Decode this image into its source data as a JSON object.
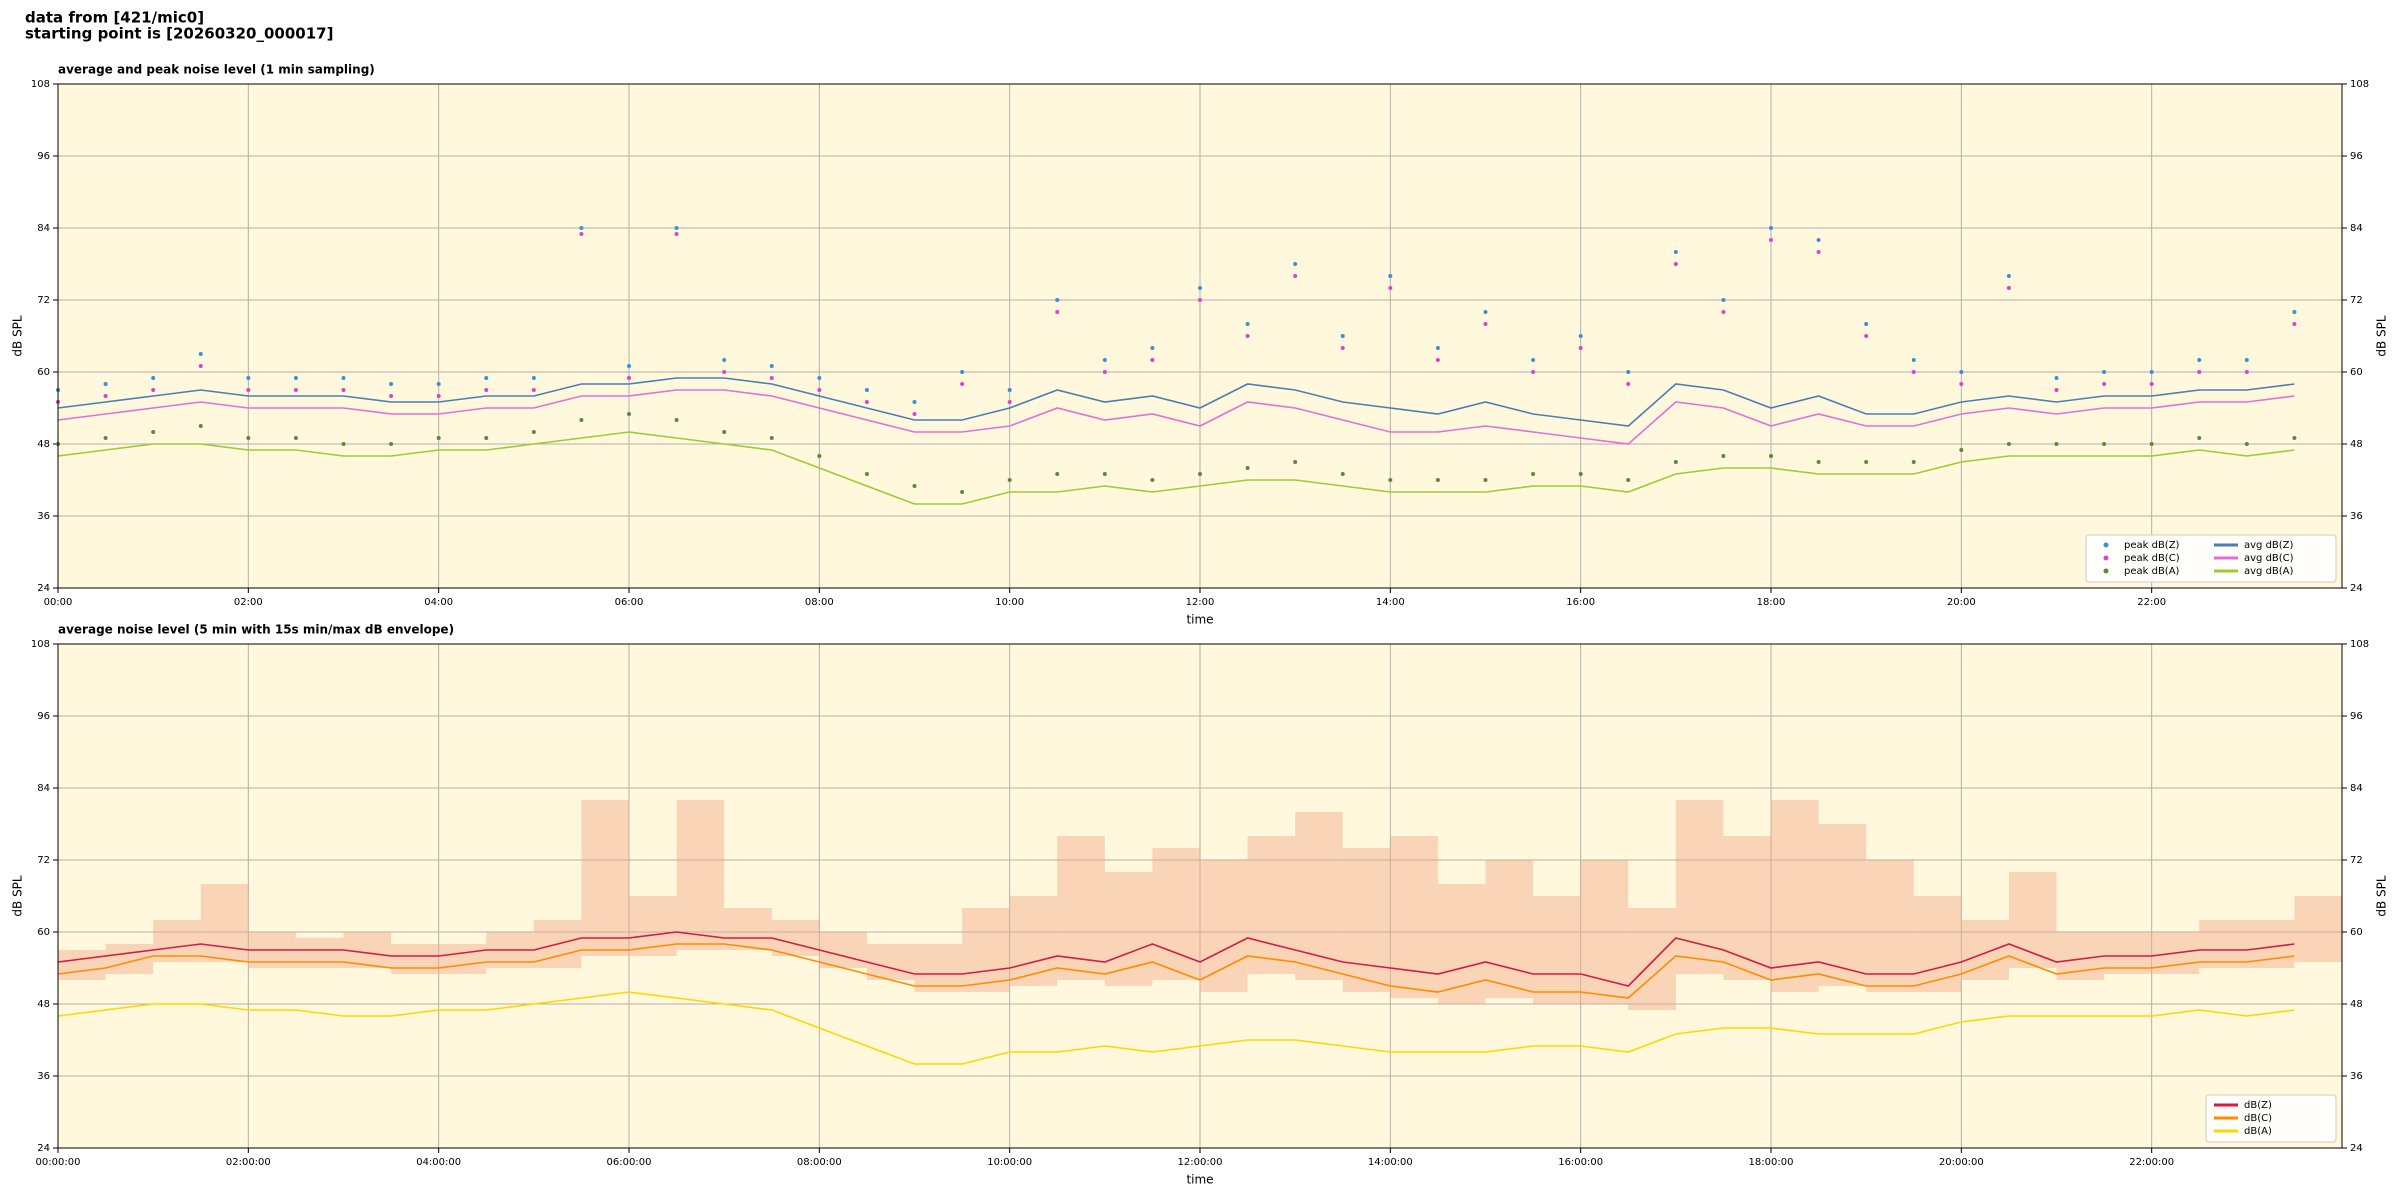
{
  "header": {
    "lines": [
      "data from [421/mic0]",
      "starting point is [20260320_000017]"
    ]
  },
  "chart_data": [
    {
      "type": "line",
      "title": "average and peak noise level (1 min sampling)",
      "xlabel": "time",
      "ylabel": "dB SPL",
      "x": [
        0,
        0.5,
        1,
        1.5,
        2,
        2.5,
        3,
        3.5,
        4,
        4.5,
        5,
        5.5,
        6,
        6.5,
        7,
        7.5,
        8,
        8.5,
        9,
        9.5,
        10,
        10.5,
        11,
        11.5,
        12,
        12.5,
        13,
        13.5,
        14,
        14.5,
        15,
        15.5,
        16,
        16.5,
        17,
        17.5,
        18,
        18.5,
        19,
        19.5,
        20,
        20.5,
        21,
        21.5,
        22,
        22.5,
        23,
        23.5
      ],
      "xlim": [
        0,
        24
      ],
      "xticks": [
        {
          "value": 0,
          "label": "00:00"
        },
        {
          "value": 2,
          "label": "02:00"
        },
        {
          "value": 4,
          "label": "04:00"
        },
        {
          "value": 6,
          "label": "06:00"
        },
        {
          "value": 8,
          "label": "08:00"
        },
        {
          "value": 10,
          "label": "10:00"
        },
        {
          "value": 12,
          "label": "12:00"
        },
        {
          "value": 14,
          "label": "14:00"
        },
        {
          "value": 16,
          "label": "16:00"
        },
        {
          "value": 18,
          "label": "18:00"
        },
        {
          "value": 20,
          "label": "20:00"
        },
        {
          "value": 22,
          "label": "22:00"
        }
      ],
      "ylim": [
        24,
        108
      ],
      "yticks": [
        24,
        36,
        48,
        60,
        72,
        84,
        96,
        108
      ],
      "right_axis": true,
      "grid": true,
      "legend": "lower right",
      "legend_columns": 2,
      "series": [
        {
          "name": "peak dB(Z)",
          "color": "#3a8fd6",
          "marker": "dot",
          "values": [
            57,
            58,
            59,
            63,
            59,
            59,
            59,
            58,
            58,
            59,
            59,
            84,
            61,
            84,
            62,
            61,
            59,
            57,
            55,
            60,
            57,
            72,
            62,
            64,
            74,
            68,
            78,
            66,
            76,
            64,
            70,
            62,
            66,
            60,
            80,
            72,
            84,
            82,
            68,
            62,
            60,
            76,
            59,
            60,
            60,
            62,
            62,
            70
          ]
        },
        {
          "name": "peak dB(C)",
          "color": "#e040d0",
          "marker": "dot",
          "values": [
            55,
            56,
            57,
            61,
            57,
            57,
            57,
            56,
            56,
            57,
            57,
            83,
            59,
            83,
            60,
            59,
            57,
            55,
            53,
            58,
            55,
            70,
            60,
            62,
            72,
            66,
            76,
            64,
            74,
            62,
            68,
            60,
            64,
            58,
            78,
            70,
            82,
            80,
            66,
            60,
            58,
            74,
            57,
            58,
            58,
            60,
            60,
            68
          ]
        },
        {
          "name": "peak dB(A)",
          "color": "#5a8a3a",
          "marker": "dot",
          "values": [
            48,
            49,
            50,
            51,
            49,
            49,
            48,
            48,
            49,
            49,
            50,
            52,
            53,
            52,
            50,
            49,
            46,
            43,
            41,
            40,
            42,
            43,
            43,
            42,
            43,
            44,
            45,
            43,
            42,
            42,
            42,
            43,
            43,
            42,
            45,
            46,
            46,
            45,
            45,
            45,
            47,
            48,
            48,
            48,
            48,
            49,
            48,
            49
          ]
        },
        {
          "name": "avg dB(Z)",
          "color": "#4a7fb5",
          "marker": "line",
          "values": [
            54,
            55,
            56,
            57,
            56,
            56,
            56,
            55,
            55,
            56,
            56,
            58,
            58,
            59,
            59,
            58,
            56,
            54,
            52,
            52,
            54,
            57,
            55,
            56,
            54,
            58,
            57,
            55,
            54,
            53,
            55,
            53,
            52,
            51,
            58,
            57,
            54,
            56,
            53,
            53,
            55,
            56,
            55,
            56,
            56,
            57,
            57,
            58
          ]
        },
        {
          "name": "avg dB(C)",
          "color": "#e070d8",
          "marker": "line",
          "values": [
            52,
            53,
            54,
            55,
            54,
            54,
            54,
            53,
            53,
            54,
            54,
            56,
            56,
            57,
            57,
            56,
            54,
            52,
            50,
            50,
            51,
            54,
            52,
            53,
            51,
            55,
            54,
            52,
            50,
            50,
            51,
            50,
            49,
            48,
            55,
            54,
            51,
            53,
            51,
            51,
            53,
            54,
            53,
            54,
            54,
            55,
            55,
            56
          ]
        },
        {
          "name": "avg dB(A)",
          "color": "#9acd32",
          "marker": "line",
          "values": [
            46,
            47,
            48,
            48,
            47,
            47,
            46,
            46,
            47,
            47,
            48,
            49,
            50,
            49,
            48,
            47,
            44,
            41,
            38,
            38,
            40,
            40,
            41,
            40,
            41,
            42,
            42,
            41,
            40,
            40,
            40,
            41,
            41,
            40,
            43,
            44,
            44,
            43,
            43,
            43,
            45,
            46,
            46,
            46,
            46,
            47,
            46,
            47
          ]
        }
      ]
    },
    {
      "type": "line",
      "title": "average noise level (5 min with 15s min/max dB envelope)",
      "xlabel": "time",
      "ylabel": "dB SPL",
      "x": [
        0,
        0.5,
        1,
        1.5,
        2,
        2.5,
        3,
        3.5,
        4,
        4.5,
        5,
        5.5,
        6,
        6.5,
        7,
        7.5,
        8,
        8.5,
        9,
        9.5,
        10,
        10.5,
        11,
        11.5,
        12,
        12.5,
        13,
        13.5,
        14,
        14.5,
        15,
        15.5,
        16,
        16.5,
        17,
        17.5,
        18,
        18.5,
        19,
        19.5,
        20,
        20.5,
        21,
        21.5,
        22,
        22.5,
        23,
        23.5
      ],
      "xlim": [
        0,
        24
      ],
      "xticks": [
        {
          "value": 0,
          "label": "00:00:00"
        },
        {
          "value": 2,
          "label": "02:00:00"
        },
        {
          "value": 4,
          "label": "04:00:00"
        },
        {
          "value": 6,
          "label": "06:00:00"
        },
        {
          "value": 8,
          "label": "08:00:00"
        },
        {
          "value": 10,
          "label": "10:00:00"
        },
        {
          "value": 12,
          "label": "12:00:00"
        },
        {
          "value": 14,
          "label": "14:00:00"
        },
        {
          "value": 16,
          "label": "16:00:00"
        },
        {
          "value": 18,
          "label": "18:00:00"
        },
        {
          "value": 20,
          "label": "20:00:00"
        },
        {
          "value": 22,
          "label": "22:00:00"
        }
      ],
      "ylim": [
        24,
        108
      ],
      "yticks": [
        24,
        36,
        48,
        60,
        72,
        84,
        96,
        108
      ],
      "right_axis": true,
      "grid": true,
      "legend": "lower right",
      "legend_columns": 1,
      "envelope": {
        "color": "#f4a98a",
        "min": [
          52,
          53,
          55,
          55,
          54,
          54,
          54,
          53,
          53,
          54,
          54,
          56,
          56,
          57,
          57,
          56,
          54,
          52,
          50,
          50,
          51,
          52,
          51,
          52,
          50,
          53,
          52,
          50,
          49,
          48,
          49,
          48,
          48,
          47,
          53,
          52,
          50,
          51,
          50,
          50,
          52,
          54,
          52,
          53,
          53,
          54,
          54,
          55
        ],
        "max": [
          57,
          58,
          62,
          68,
          60,
          59,
          60,
          58,
          58,
          60,
          62,
          82,
          66,
          82,
          64,
          62,
          60,
          58,
          58,
          64,
          66,
          76,
          70,
          74,
          72,
          76,
          80,
          74,
          76,
          68,
          72,
          66,
          72,
          64,
          82,
          76,
          82,
          78,
          72,
          66,
          62,
          70,
          60,
          60,
          60,
          62,
          62,
          66
        ]
      },
      "series": [
        {
          "name": "dB(Z)",
          "color": "#d41a46",
          "marker": "line",
          "values": [
            55,
            56,
            57,
            58,
            57,
            57,
            57,
            56,
            56,
            57,
            57,
            59,
            59,
            60,
            59,
            59,
            57,
            55,
            53,
            53,
            54,
            56,
            55,
            58,
            55,
            59,
            57,
            55,
            54,
            53,
            55,
            53,
            53,
            51,
            59,
            57,
            54,
            55,
            53,
            53,
            55,
            58,
            55,
            56,
            56,
            57,
            57,
            58
          ]
        },
        {
          "name": "dB(C)",
          "color": "#ff8c00",
          "marker": "line",
          "values": [
            53,
            54,
            56,
            56,
            55,
            55,
            55,
            54,
            54,
            55,
            55,
            57,
            57,
            58,
            58,
            57,
            55,
            53,
            51,
            51,
            52,
            54,
            53,
            55,
            52,
            56,
            55,
            53,
            51,
            50,
            52,
            50,
            50,
            49,
            56,
            55,
            52,
            53,
            51,
            51,
            53,
            56,
            53,
            54,
            54,
            55,
            55,
            56
          ]
        },
        {
          "name": "dB(A)",
          "color": "#ffd700",
          "marker": "line",
          "values": [
            46,
            47,
            48,
            48,
            47,
            47,
            46,
            46,
            47,
            47,
            48,
            49,
            50,
            49,
            48,
            47,
            44,
            41,
            38,
            38,
            40,
            40,
            41,
            40,
            41,
            42,
            42,
            41,
            40,
            40,
            40,
            41,
            41,
            40,
            43,
            44,
            44,
            43,
            43,
            43,
            45,
            46,
            46,
            46,
            46,
            47,
            46,
            47
          ]
        }
      ]
    }
  ]
}
